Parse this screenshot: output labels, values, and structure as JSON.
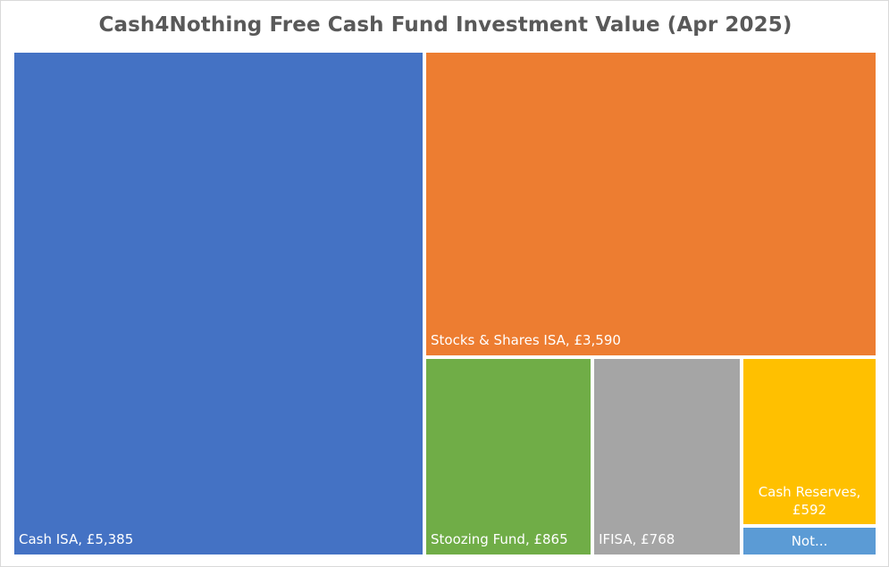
{
  "chart_data": {
    "type": "treemap",
    "title": "Cash4Nothing Free Cash Fund Investment Value (Apr 2025)",
    "items": [
      {
        "name": "Cash ISA",
        "value": 5385,
        "label_lines": [
          "Cash ISA,  £5,385"
        ],
        "color": "#4472C4"
      },
      {
        "name": "Stocks & Shares ISA",
        "value": 3590,
        "label_lines": [
          "Stocks & Shares ISA,  £3,590"
        ],
        "color": "#ED7D31"
      },
      {
        "name": "Stoozing Fund",
        "value": 865,
        "label_lines": [
          "Stoozing Fund,  £865"
        ],
        "color": "#70AD47"
      },
      {
        "name": "IFISA",
        "value": 768,
        "label_lines": [
          "IFISA,  £768"
        ],
        "color": "#A5A5A5"
      },
      {
        "name": "Cash Reserves",
        "value": 592,
        "label_lines": [
          "Cash Reserves,",
          "£592"
        ],
        "color": "#FFC000"
      },
      {
        "name": "Not...",
        "value": 107,
        "label_lines": [
          "Not..."
        ],
        "color": "#5B9BD5"
      }
    ]
  }
}
